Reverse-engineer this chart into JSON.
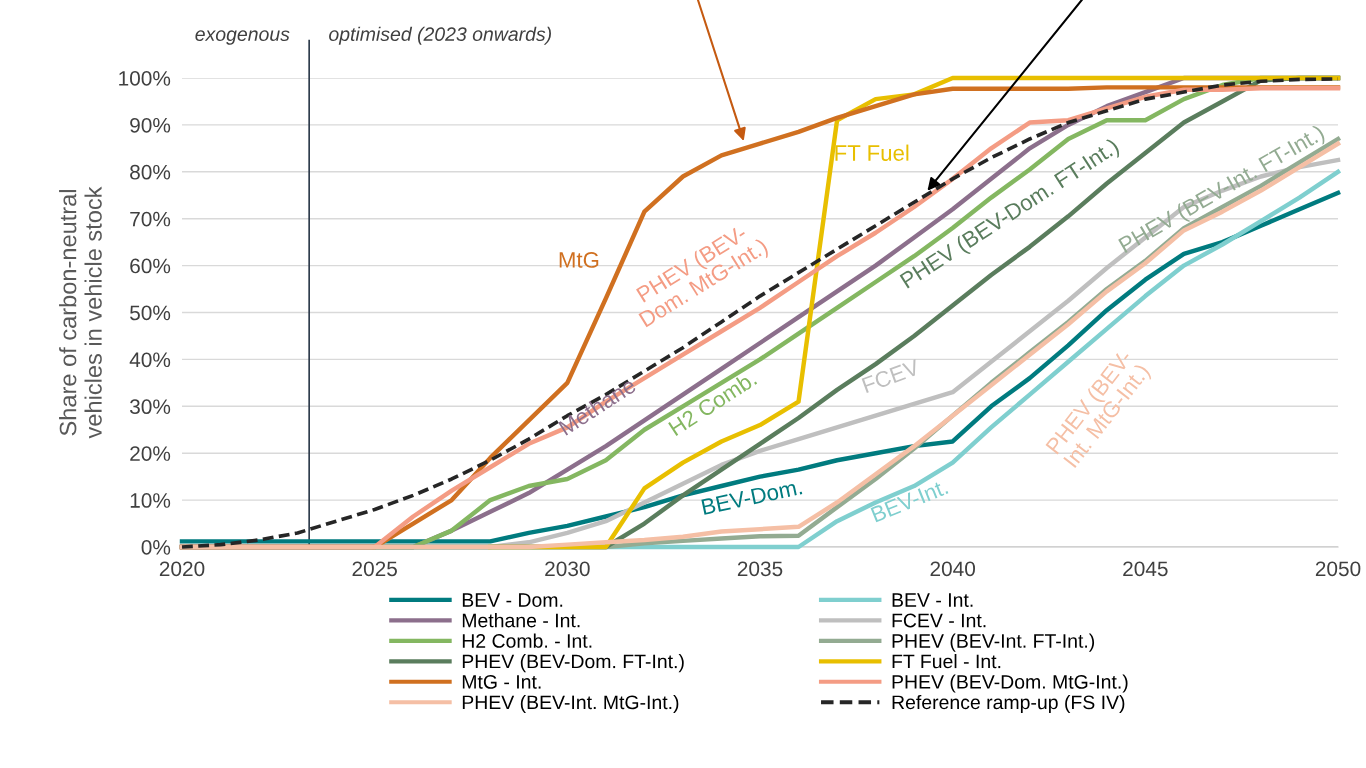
{
  "chart_data": {
    "type": "line",
    "ylabel": "Share of carbon-neutral\nvehicles in vehicle stock",
    "x": [
      2020,
      2021,
      2022,
      2023,
      2024,
      2025,
      2026,
      2027,
      2028,
      2029,
      2030,
      2031,
      2032,
      2033,
      2034,
      2035,
      2036,
      2037,
      2038,
      2039,
      2040,
      2041,
      2042,
      2043,
      2044,
      2045,
      2046,
      2047,
      2048,
      2049,
      2050
    ],
    "xlim": [
      2020,
      2050
    ],
    "xticks": [
      2020,
      2025,
      2030,
      2035,
      2040,
      2045,
      2050
    ],
    "ylim": [
      0,
      100
    ],
    "yticks": [
      {
        "value": 0,
        "label": "0%"
      },
      {
        "value": 10,
        "label": "10%"
      },
      {
        "value": 20,
        "label": "20%"
      },
      {
        "value": 30,
        "label": "30%"
      },
      {
        "value": 40,
        "label": "40%"
      },
      {
        "value": 50,
        "label": "50%"
      },
      {
        "value": 60,
        "label": "60%"
      },
      {
        "value": 70,
        "label": "70%"
      },
      {
        "value": 80,
        "label": "80%"
      },
      {
        "value": 90,
        "label": "90%"
      },
      {
        "value": 100,
        "label": "100%"
      }
    ],
    "grid": "y",
    "legend": "bottom",
    "marker": "none",
    "series": [
      {
        "name": "BEV - Dom.",
        "color": "#007b7f",
        "values": [
          1.2,
          1.2,
          1.2,
          1.2,
          1.2,
          1.2,
          1.2,
          1.2,
          1.2,
          3,
          4.5,
          6.5,
          8.5,
          11,
          13,
          15,
          16.5,
          18.5,
          20,
          21.5,
          22.5,
          30,
          36,
          43,
          50.5,
          57,
          62.5,
          65,
          68.5,
          72,
          75.5
        ]
      },
      {
        "name": "BEV - Int.",
        "color": "#7fcfcf",
        "values": [
          0,
          0,
          0,
          0,
          0,
          0,
          0,
          0,
          0,
          0,
          0,
          0,
          0,
          0,
          0,
          0,
          0,
          5.5,
          9.5,
          13,
          18,
          25.5,
          32.5,
          39.5,
          46.5,
          53.5,
          60,
          64.5,
          69.5,
          74.5,
          80
        ]
      },
      {
        "name": "Methane - Int.",
        "color": "#8c6f8c",
        "values": [
          0,
          0,
          0,
          0,
          0,
          0,
          0,
          3.5,
          7.5,
          11.5,
          16.5,
          21.5,
          27,
          32.5,
          38,
          43.5,
          49,
          54.5,
          60,
          66,
          72,
          78.5,
          85,
          90,
          94,
          97,
          100,
          100,
          100,
          100,
          100
        ]
      },
      {
        "name": "FCEV - Int.",
        "color": "#bfbfbf",
        "values": [
          0,
          0,
          0,
          0,
          0,
          0,
          0,
          0,
          0,
          1,
          3,
          5.5,
          9.5,
          13.5,
          17.5,
          20.5,
          23,
          25.5,
          28,
          30.5,
          33,
          39.5,
          46,
          52.5,
          59.5,
          66,
          72.5,
          76,
          79,
          81,
          82.5
        ]
      },
      {
        "name": "H2 Comb. - Int.",
        "color": "#84b761",
        "values": [
          null,
          null,
          null,
          null,
          null,
          0,
          0,
          3.5,
          10,
          13,
          14.5,
          18.5,
          25,
          30,
          35,
          40,
          45.5,
          51,
          56.5,
          62,
          68,
          74.5,
          80.5,
          87,
          91,
          91,
          95.5,
          98.5,
          100,
          100,
          100
        ]
      },
      {
        "name": "PHEV (BEV-Int. FT-Int.)",
        "color": "#93ab92",
        "values": [
          0,
          0,
          0,
          0,
          0,
          0,
          0,
          0,
          0,
          0,
          0,
          0,
          0.8,
          1.3,
          1.8,
          2.3,
          2.4,
          8.5,
          14.5,
          21,
          28,
          35,
          41.5,
          48,
          55,
          61,
          68,
          72.5,
          77,
          82,
          87
        ]
      },
      {
        "name": "PHEV (BEV-Dom. FT-Int.)",
        "color": "#5a7d5d",
        "values": [
          0,
          0,
          0,
          0,
          0,
          0,
          0,
          0,
          0,
          0,
          0,
          0,
          5,
          11,
          16.5,
          22,
          27.5,
          33.5,
          39,
          45,
          51.5,
          58,
          64,
          70.5,
          77.5,
          84,
          90.5,
          95,
          99.5,
          100,
          100
        ]
      },
      {
        "name": "FT Fuel - Int.",
        "color": "#e8bf00",
        "values": [
          null,
          null,
          null,
          null,
          null,
          null,
          null,
          null,
          0,
          0,
          0,
          0,
          12.5,
          18,
          22.5,
          26,
          31,
          91,
          95.5,
          96.5,
          100,
          100,
          100,
          100,
          100,
          100,
          100,
          100,
          100,
          100,
          100
        ]
      },
      {
        "name": "MtG - Int.",
        "color": "#d07020",
        "values": [
          0,
          0,
          0,
          0,
          0,
          0,
          5,
          10,
          19,
          27,
          35,
          53,
          71.5,
          79,
          83.5,
          86,
          88.5,
          91.5,
          94,
          96.5,
          97.7,
          97.7,
          97.7,
          97.7,
          98,
          98,
          98,
          98,
          98,
          98,
          98
        ]
      },
      {
        "name": "PHEV (BEV-Dom. MtG-Int.)",
        "color": "#f49c84",
        "values": [
          0,
          0,
          0,
          0,
          0,
          0,
          6.5,
          12,
          17,
          22,
          25.5,
          31,
          36,
          41,
          46,
          51,
          56.5,
          62,
          67,
          72.5,
          78.5,
          85,
          90.5,
          91,
          93.5,
          96,
          97.5,
          97.5,
          97.8,
          97.8,
          97.8
        ]
      },
      {
        "name": "PHEV (BEV-Int. MtG-Int.)",
        "color": "#f5bfa5",
        "values": [
          0,
          0,
          0,
          0,
          0,
          0,
          0,
          0,
          0,
          0,
          0.5,
          1,
          1.5,
          2.2,
          3.3,
          3.8,
          4.3,
          9.5,
          15.5,
          21.5,
          28,
          34.5,
          41,
          47.5,
          54.5,
          60.5,
          67.5,
          71.5,
          76,
          81,
          86
        ]
      },
      {
        "name": "Reference ramp-up (FS IV)",
        "color": "#262626",
        "line_style": "dashed",
        "values": [
          0,
          0.5,
          1.5,
          3,
          5.5,
          8,
          11,
          14.5,
          18.5,
          23,
          28,
          32.5,
          37.5,
          42.5,
          48,
          53.5,
          58.5,
          63.5,
          68.5,
          73.5,
          78.5,
          83,
          87,
          90.5,
          93,
          95.5,
          97,
          98.5,
          99.3,
          99.7,
          99.8
        ]
      }
    ],
    "ref_lines": [
      {
        "axis": "x",
        "value": 2023.3,
        "color": "#2e3c4c"
      }
    ],
    "annotations": [
      "exogenous",
      "optimised (2023 onwards)",
      "MtG",
      "FT Fuel",
      "PHEV (BEV-\nDom. MtG-Int.)",
      "Methane",
      "H2 Comb.",
      "PHEV (BEV-Dom. FT-Int.)",
      "FCEV",
      "BEV-Dom.",
      "BEV-Int.",
      "PHEV (BEV-Int. FT-Int.)",
      "PHEV (BEV-\nInt. MtG-Int.)"
    ]
  }
}
